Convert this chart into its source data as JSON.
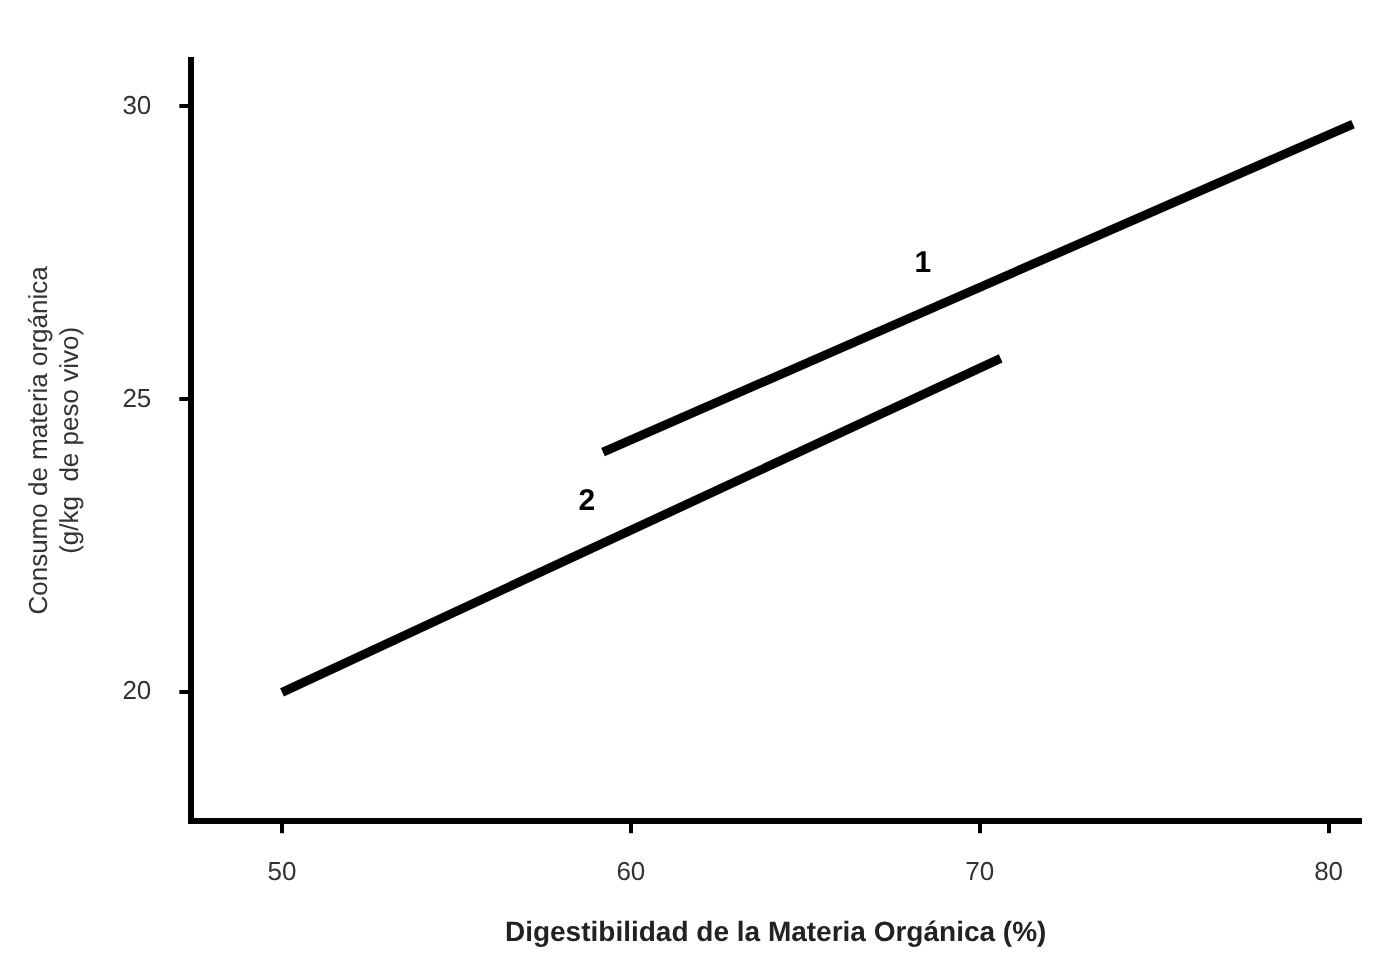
{
  "chart_data": {
    "type": "line",
    "xlabel": "Digestibilidad de la Materia Orgánica (%)",
    "ylabel": [
      "Consumo de materia orgánica",
      "(g/kg  de peso vivo)"
    ],
    "series": [
      {
        "name": "1",
        "color": "#000000",
        "x": [
          59.2,
          80.7
        ],
        "values": [
          24.1,
          29.7
        ]
      },
      {
        "name": "2",
        "color": "#000000",
        "x": [
          50,
          70.6
        ],
        "values": [
          20,
          25.7
        ]
      }
    ],
    "xlim": [
      47.4,
      80.9
    ],
    "xticks": [
      50,
      60,
      70,
      80
    ],
    "ylim": [
      17.8,
      30.8
    ],
    "yticks": [
      20,
      25,
      30
    ],
    "grid": false,
    "legend": false,
    "marker": "none",
    "line_style": "solid"
  }
}
